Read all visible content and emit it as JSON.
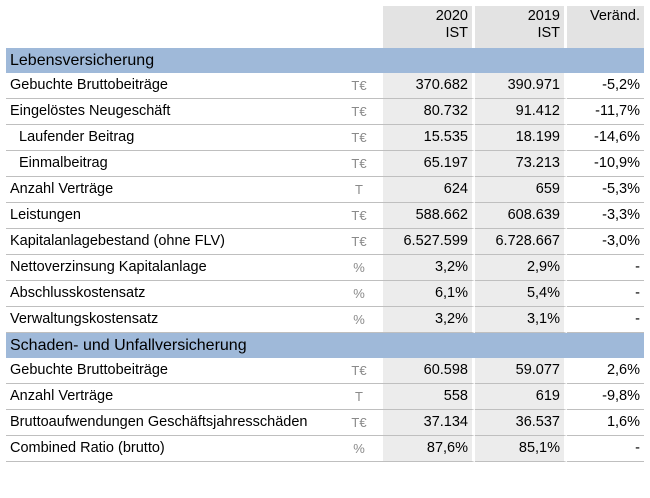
{
  "header": {
    "year1": "2020",
    "year1_sub": "IST",
    "year2": "2019",
    "year2_sub": "IST",
    "change": "Veränd."
  },
  "sections": [
    {
      "title": "Lebensversicherung",
      "rows": [
        {
          "label": "Gebuchte Bruttobeiträge",
          "unit": "T€",
          "y1": "370.682",
          "y2": "390.971",
          "chg": "-5,2%"
        },
        {
          "label": "Eingelöstes Neugeschäft",
          "unit": "T€",
          "y1": "80.732",
          "y2": "91.412",
          "chg": "-11,7%"
        },
        {
          "label": "Laufender Beitrag",
          "unit": "T€",
          "y1": "15.535",
          "y2": "18.199",
          "chg": "-14,6%"
        },
        {
          "label": "Einmalbeitrag",
          "unit": "T€",
          "y1": "65.197",
          "y2": "73.213",
          "chg": "-10,9%"
        },
        {
          "label": "Anzahl Verträge",
          "unit": "T",
          "y1": "624",
          "y2": "659",
          "chg": "-5,3%"
        },
        {
          "label": "Leistungen",
          "unit": "T€",
          "y1": "588.662",
          "y2": "608.639",
          "chg": "-3,3%"
        },
        {
          "label": "Kapitalanlagebestand (ohne FLV)",
          "unit": "T€",
          "y1": "6.527.599",
          "y2": "6.728.667",
          "chg": "-3,0%"
        },
        {
          "label": "Nettoverzinsung Kapitalanlage",
          "unit": "%",
          "y1": "3,2%",
          "y2": "2,9%",
          "chg": "-"
        },
        {
          "label": "Abschlusskostensatz",
          "unit": "%",
          "y1": "6,1%",
          "y2": "5,4%",
          "chg": "-"
        },
        {
          "label": "Verwaltungskostensatz",
          "unit": "%",
          "y1": "3,2%",
          "y2": "3,1%",
          "chg": "-"
        }
      ]
    },
    {
      "title": "Schaden- und Unfallversicherung",
      "rows": [
        {
          "label": "Gebuchte Bruttobeiträge",
          "unit": "T€",
          "y1": "60.598",
          "y2": "59.077",
          "chg": "2,6%"
        },
        {
          "label": "Anzahl Verträge",
          "unit": "T",
          "y1": "558",
          "y2": "619",
          "chg": "-9,8%"
        },
        {
          "label": "Bruttoaufwendungen Geschäftsjahresschäden",
          "unit": "T€",
          "y1": "37.134",
          "y2": "36.537",
          "chg": "1,6%"
        },
        {
          "label": "Combined Ratio (brutto)",
          "unit": "%",
          "y1": "87,6%",
          "y2": "85,1%",
          "chg": "-"
        }
      ]
    }
  ],
  "colors": {
    "section_band": "#9fb9d9",
    "value_cell": "#ececec",
    "header_cell": "#e3e3e3"
  }
}
